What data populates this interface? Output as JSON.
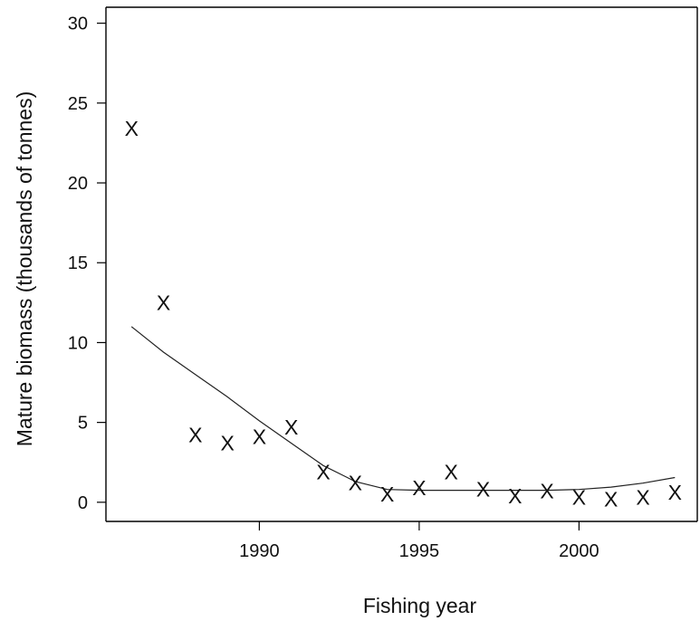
{
  "chart_data": {
    "type": "scatter",
    "title": "",
    "xlabel": "Fishing year",
    "ylabel": "Mature biomass (thousands of tonnes)",
    "xlim": [
      1985.2,
      2003.7
    ],
    "ylim": [
      -1.2,
      31
    ],
    "xticks": [
      1990,
      1995,
      2000
    ],
    "yticks": [
      0,
      5,
      10,
      15,
      20,
      25,
      30
    ],
    "marker_symbol": "X",
    "grid": false,
    "legend": "none",
    "series": [
      {
        "kind": "points",
        "x": [
          1986,
          1987,
          1988,
          1989,
          1990,
          1991,
          1992,
          1993,
          1994,
          1995,
          1996,
          1997,
          1998,
          1999,
          2000,
          2001,
          2002,
          2003
        ],
        "y": [
          23.4,
          12.5,
          4.2,
          3.7,
          4.1,
          4.7,
          1.9,
          1.2,
          0.5,
          0.9,
          1.9,
          0.8,
          0.4,
          0.7,
          0.3,
          0.2,
          0.3,
          0.6
        ]
      },
      {
        "kind": "line",
        "x": [
          1986,
          1987,
          1988,
          1989,
          1990,
          1991,
          1992,
          1993,
          1994,
          1995,
          1996,
          1997,
          1998,
          1999,
          2000,
          2001,
          2002,
          2003
        ],
        "y": [
          11.0,
          9.4,
          8.0,
          6.6,
          5.1,
          3.7,
          2.3,
          1.3,
          0.8,
          0.75,
          0.75,
          0.75,
          0.75,
          0.75,
          0.8,
          0.95,
          1.2,
          1.55
        ]
      }
    ]
  }
}
